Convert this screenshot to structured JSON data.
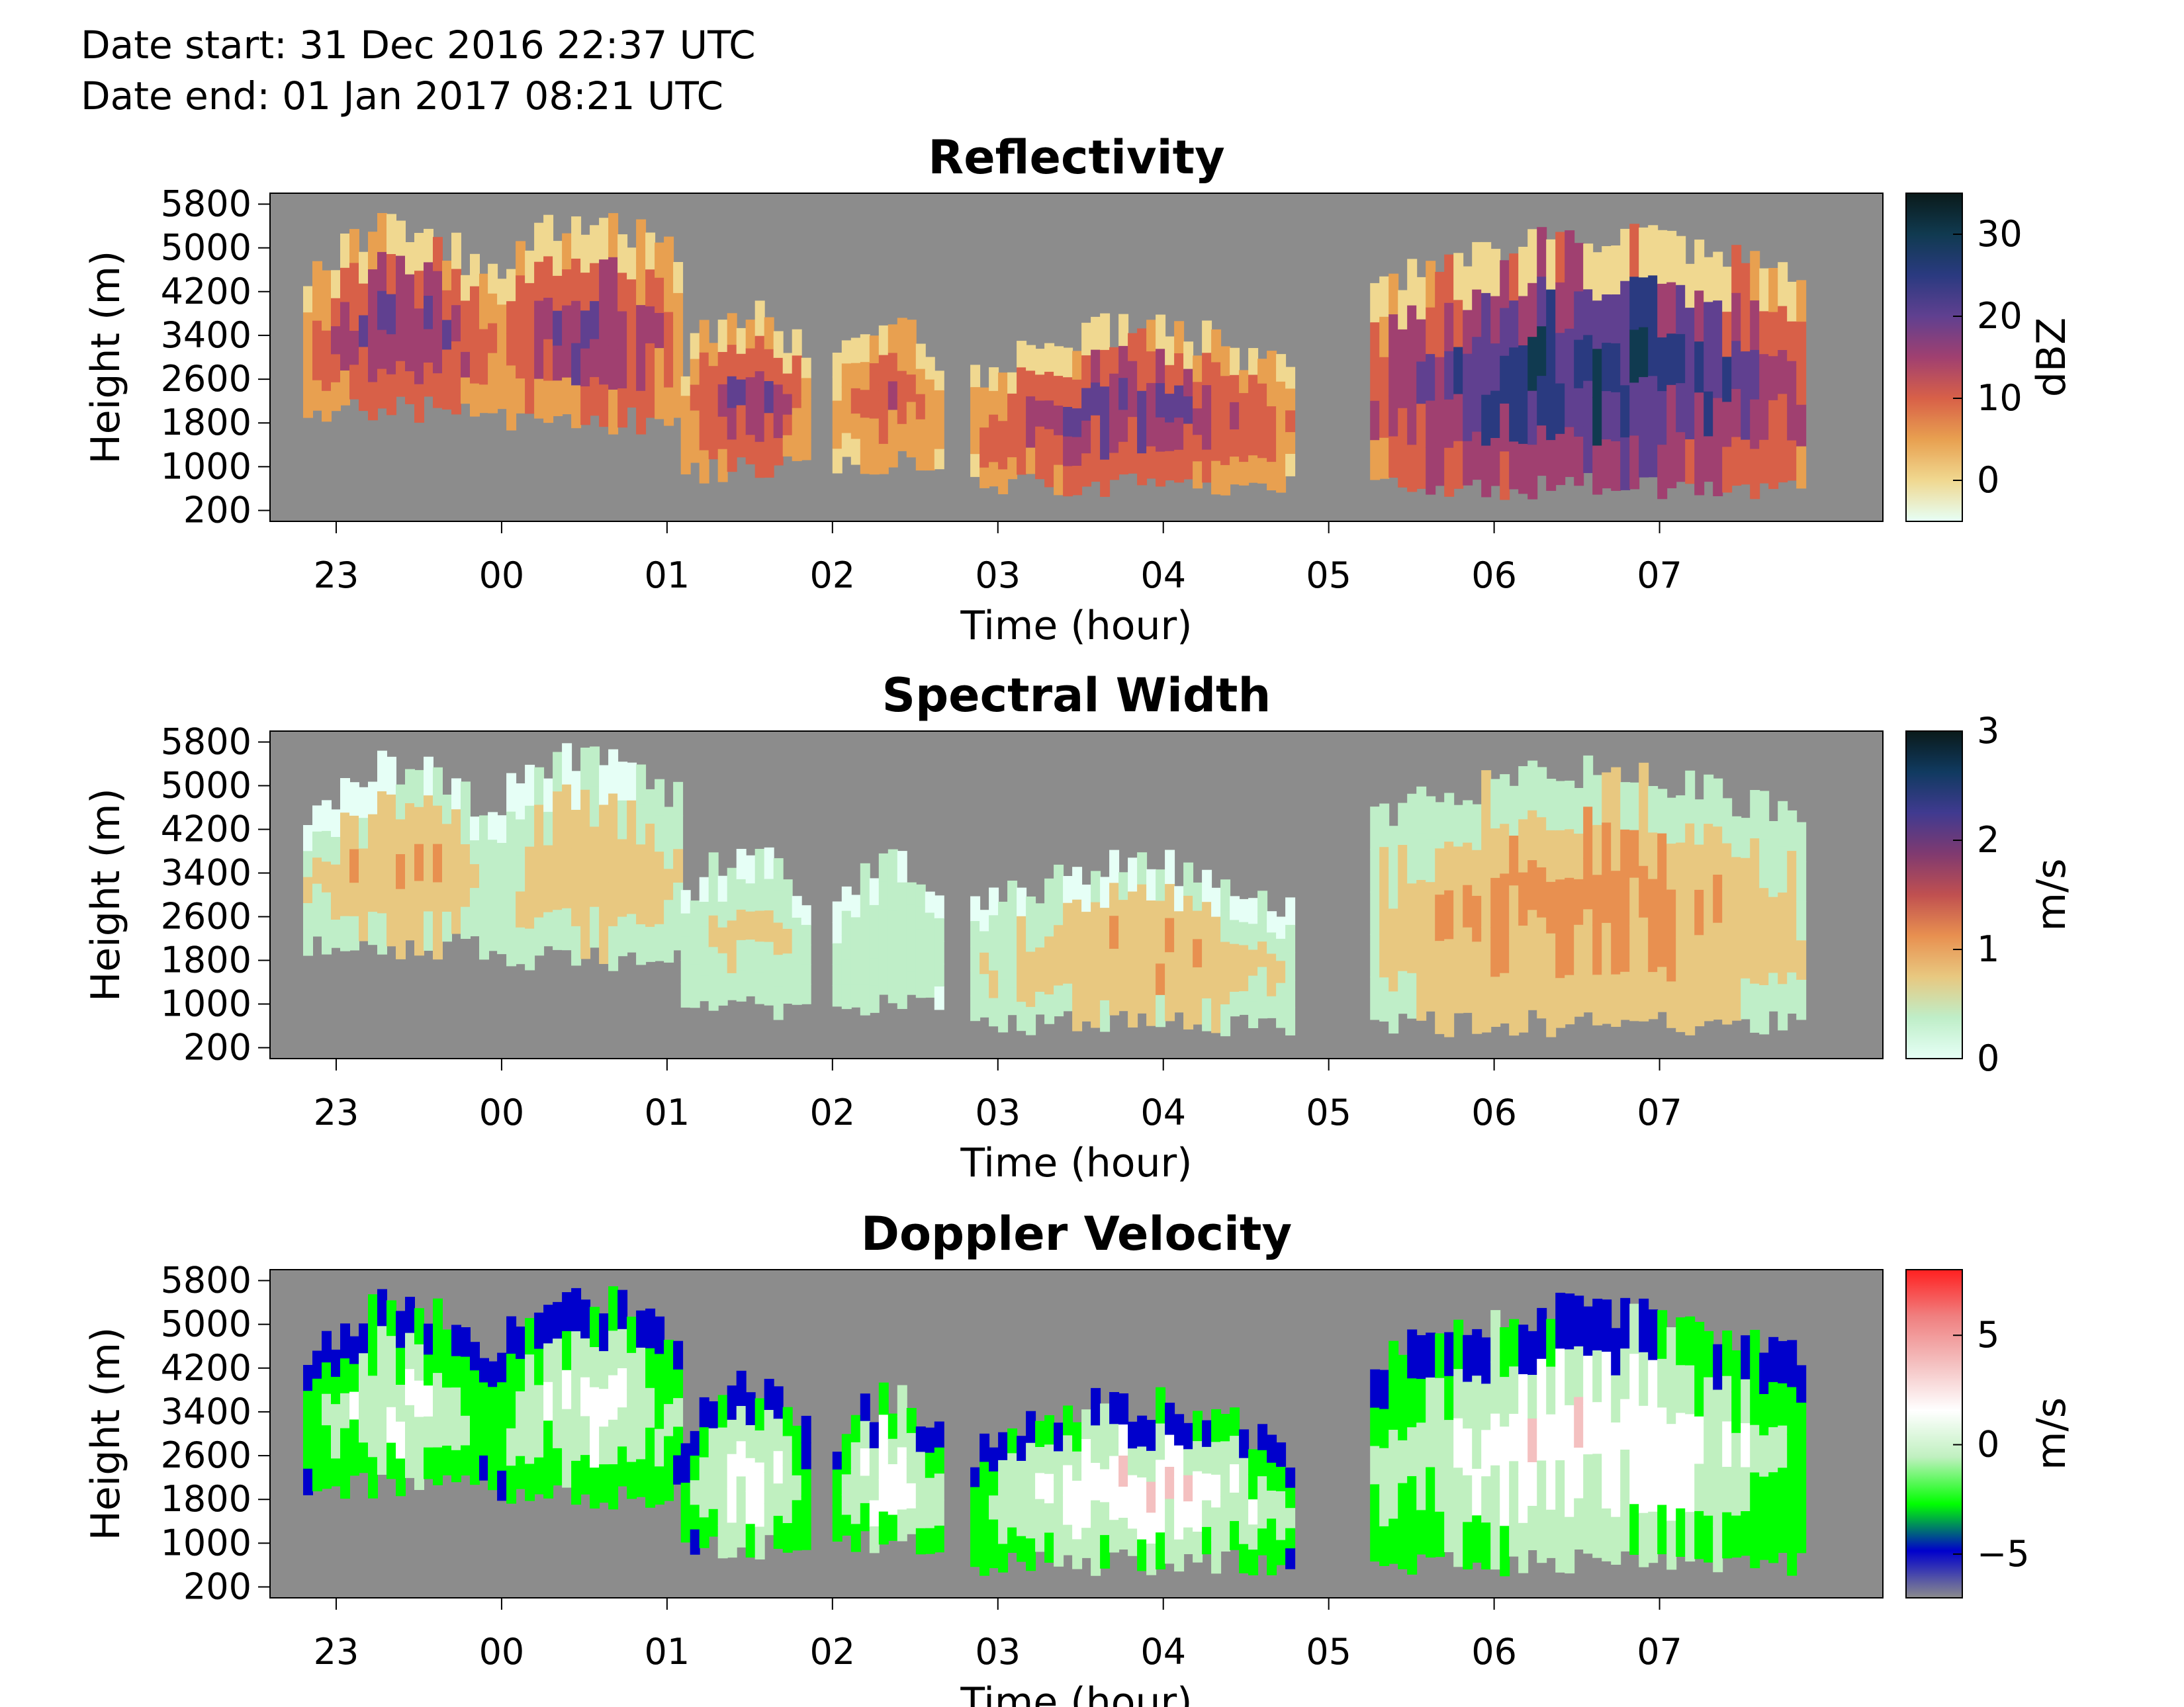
{
  "header": {
    "date_start": "Date start: 31 Dec 2016 22:37 UTC",
    "date_end": "Date end:  01 Jan 2017 08:21 UTC"
  },
  "chart_data": [
    {
      "type": "heatmap",
      "title": "Reflectivity",
      "xlabel": "Time (hour)",
      "ylabel": "Height (m)",
      "x_ticks": [
        "23",
        "00",
        "01",
        "02",
        "03",
        "04",
        "05",
        "06",
        "07"
      ],
      "y_ticks": [
        "5800",
        "5000",
        "4200",
        "3400",
        "2600",
        "1800",
        "1000",
        "200"
      ],
      "xlim": [
        "22:36",
        "08:21"
      ],
      "ylim": [
        0,
        6000
      ],
      "colorbar": {
        "label": "dBZ",
        "ticks": [
          "30",
          "20",
          "10",
          "0"
        ],
        "range": [
          -5,
          35
        ],
        "colormap": [
          "#e6fff6",
          "#f0d890",
          "#e8a050",
          "#d86048",
          "#a04070",
          "#604090",
          "#2a3a80",
          "#103a50",
          "#0a1a1a"
        ]
      },
      "no_data_color": "#8c8c8c",
      "echo_segments": [
        {
          "start": "22:48",
          "end": "23:55",
          "top_m": 5700,
          "base_m": 1800,
          "peak": 20
        },
        {
          "start": "23:55",
          "end": "01:05",
          "top_m": 5900,
          "base_m": 1600,
          "peak": 19
        },
        {
          "start": "01:05",
          "end": "01:50",
          "top_m": 4200,
          "base_m": 700,
          "peak": 18
        },
        {
          "start": "02:00",
          "end": "02:40",
          "top_m": 4000,
          "base_m": 800,
          "peak": 12
        },
        {
          "start": "02:50",
          "end": "04:45",
          "top_m": 3900,
          "base_m": 400,
          "peak": 20
        },
        {
          "start": "05:15",
          "end": "07:50",
          "top_m": 5600,
          "base_m": 400,
          "peak": 30
        }
      ]
    },
    {
      "type": "heatmap",
      "title": "Spectral Width",
      "xlabel": "Time (hour)",
      "ylabel": "Height (m)",
      "x_ticks": [
        "23",
        "00",
        "01",
        "02",
        "03",
        "04",
        "05",
        "06",
        "07"
      ],
      "y_ticks": [
        "5800",
        "5000",
        "4200",
        "3400",
        "2600",
        "1800",
        "1000",
        "200"
      ],
      "xlim": [
        "22:36",
        "08:21"
      ],
      "ylim": [
        0,
        6000
      ],
      "colorbar": {
        "label": "m/s",
        "ticks": [
          "3",
          "2",
          "1",
          "0"
        ],
        "range": [
          0,
          3
        ],
        "colormap": [
          "#e6fff6",
          "#bfeec8",
          "#e8c880",
          "#e89050",
          "#c05050",
          "#803a70",
          "#403a90",
          "#103a60",
          "#0a1a1a"
        ]
      },
      "no_data_color": "#8c8c8c",
      "echo_segments": [
        {
          "start": "22:48",
          "end": "23:55",
          "top_m": 5700,
          "base_m": 1800,
          "peak": 1.0
        },
        {
          "start": "23:55",
          "end": "01:05",
          "top_m": 5900,
          "base_m": 1600,
          "peak": 0.9
        },
        {
          "start": "01:05",
          "end": "01:50",
          "top_m": 4200,
          "base_m": 700,
          "peak": 0.7
        },
        {
          "start": "02:00",
          "end": "02:40",
          "top_m": 4000,
          "base_m": 800,
          "peak": 0.5
        },
        {
          "start": "02:50",
          "end": "04:45",
          "top_m": 3900,
          "base_m": 400,
          "peak": 1.0
        },
        {
          "start": "05:15",
          "end": "07:50",
          "top_m": 5600,
          "base_m": 400,
          "peak": 1.2
        }
      ]
    },
    {
      "type": "heatmap",
      "title": "Doppler Velocity",
      "xlabel": "Time (hour)",
      "ylabel": "Height (m)",
      "x_ticks": [
        "23",
        "00",
        "01",
        "02",
        "03",
        "04",
        "05",
        "06",
        "07"
      ],
      "y_ticks": [
        "5800",
        "5000",
        "4200",
        "3400",
        "2600",
        "1800",
        "1000",
        "200"
      ],
      "xlim": [
        "22:36",
        "08:21"
      ],
      "ylim": [
        0,
        6000
      ],
      "colorbar": {
        "label": "m/s",
        "ticks": [
          "5",
          "0",
          "−5"
        ],
        "range": [
          -7,
          8
        ],
        "colormap": [
          "#8c8c8c",
          "#0000cc",
          "#00ff00",
          "#c0f0c0",
          "#ffffff",
          "#f4c0c0",
          "#f08080",
          "#ff2020"
        ]
      },
      "no_data_color": "#8c8c8c",
      "echo_segments": [
        {
          "start": "22:48",
          "end": "23:55",
          "top_m": 5700,
          "base_m": 1800,
          "peak": 1.5
        },
        {
          "start": "23:55",
          "end": "01:05",
          "top_m": 5900,
          "base_m": 1600,
          "peak": 1.5
        },
        {
          "start": "01:05",
          "end": "01:50",
          "top_m": 4200,
          "base_m": 700,
          "peak": 2.0
        },
        {
          "start": "02:00",
          "end": "02:40",
          "top_m": 4000,
          "base_m": 800,
          "peak": 2.5
        },
        {
          "start": "02:50",
          "end": "04:45",
          "top_m": 3900,
          "base_m": 400,
          "peak": 3.0
        },
        {
          "start": "05:15",
          "end": "07:50",
          "top_m": 5600,
          "base_m": 400,
          "peak": 3.0
        }
      ]
    }
  ]
}
